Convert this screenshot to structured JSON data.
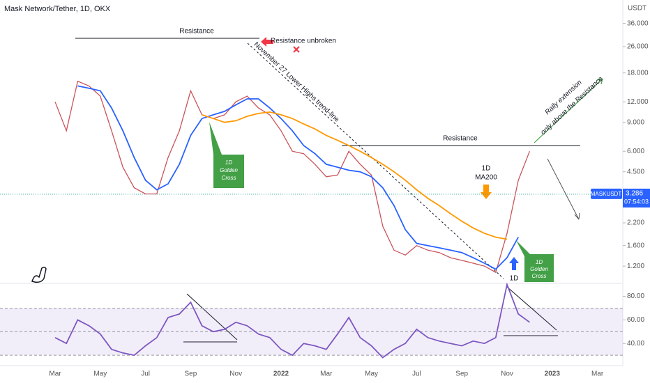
{
  "chart_data": [
    {
      "type": "line",
      "log_scale": true,
      "axis_label": "USDT",
      "categories": [
        "Mar",
        null,
        null,
        null,
        "May",
        null,
        null,
        null,
        "Jul",
        null,
        null,
        null,
        "Sep",
        null,
        null,
        null,
        "Nov",
        null,
        null,
        null,
        "2022",
        null,
        null,
        null,
        "Mar",
        null,
        null,
        null,
        "May",
        null,
        null,
        null,
        "Jul",
        null,
        null,
        null,
        "Sep",
        null,
        null,
        null,
        "Nov",
        null,
        null,
        null,
        "2023",
        null,
        null,
        null,
        "Mar"
      ],
      "series": [
        {
          "color": "#c9545a",
          "values": [
            12,
            8,
            16,
            15,
            13,
            8,
            4.8,
            3.6,
            3.3,
            3.3,
            5.5,
            8,
            14,
            10,
            9.5,
            10,
            12,
            13,
            11,
            10,
            8,
            6,
            5.8,
            5,
            4.2,
            4.3,
            6,
            5,
            4.3,
            2.1,
            1.5,
            1.4,
            1.6,
            1.5,
            1.45,
            1.35,
            1.3,
            1.25,
            1.2,
            1.1,
            1.9,
            4.0,
            6.0,
            null,
            null,
            null,
            null,
            null,
            null
          ]
        },
        {
          "color": "#2962ff",
          "values": [
            null,
            null,
            15,
            14.5,
            14,
            11,
            8,
            5.5,
            4,
            3.5,
            3.8,
            5,
            7.5,
            9.5,
            10,
            10.5,
            11.5,
            12.5,
            12.5,
            11,
            9.5,
            8,
            6.5,
            5.8,
            5,
            4.8,
            4.6,
            4.5,
            4.2,
            3.6,
            2.8,
            2.0,
            1.65,
            1.6,
            1.55,
            1.5,
            1.45,
            1.35,
            1.25,
            1.15,
            1.35,
            1.8,
            null,
            null,
            null,
            null,
            null,
            null,
            null
          ]
        },
        {
          "color": "#ff9800",
          "values": [
            null,
            null,
            null,
            null,
            null,
            null,
            null,
            null,
            null,
            null,
            null,
            null,
            null,
            10,
            9.5,
            9,
            9.2,
            9.8,
            10.2,
            10.4,
            10,
            9.5,
            8.8,
            8.2,
            7.5,
            7,
            6.5,
            6,
            5.5,
            5,
            4.5,
            4,
            3.5,
            3.1,
            2.8,
            2.5,
            2.25,
            2.05,
            1.9,
            1.8,
            1.75,
            null,
            null,
            null,
            null,
            null,
            null,
            null,
            null
          ]
        }
      ],
      "ylim": [
        0.96,
        50
      ],
      "yticks": [
        {
          "value": 1.2,
          "label": "1.200"
        },
        {
          "value": 1.6,
          "label": "1.600"
        },
        {
          "value": 2.2,
          "label": "2.200"
        },
        {
          "value": 4.5,
          "label": "4.500"
        },
        {
          "value": 6,
          "label": "6.000"
        },
        {
          "value": 9,
          "label": "9.000"
        },
        {
          "value": 12,
          "label": "12.000"
        },
        {
          "value": 18,
          "label": "18.000"
        },
        {
          "value": 26,
          "label": "26.000"
        },
        {
          "value": 36,
          "label": "36.000"
        }
      ],
      "last_value": 3.286,
      "symbol": "MASKUSDT",
      "countdown": "07:54:03",
      "annotations": {
        "title": "Mask Network/Tether, 1D, OKX",
        "resistance_top": "Resistance",
        "resistance_unbroken": "Resistance unbroken",
        "trend_line": "November 27 Lower Highs trend-line",
        "resistance_mid": "Resistance",
        "golden_cross_1": [
          "1D",
          "Golden",
          "Cross"
        ],
        "ma200": [
          "1D",
          "MA200"
        ],
        "golden_cross_2": [
          "1D",
          "Golden",
          "Cross"
        ],
        "blue_1d": "1D",
        "rally": [
          "Rally extension",
          "only above the Resistance"
        ]
      }
    },
    {
      "type": "line",
      "series": [
        {
          "color": "#7e57c2",
          "values": [
            45,
            40,
            60,
            55,
            48,
            35,
            32,
            30,
            38,
            45,
            62,
            65,
            75,
            55,
            50,
            52,
            58,
            55,
            48,
            45,
            35,
            30,
            40,
            38,
            35,
            48,
            62,
            45,
            38,
            28,
            35,
            40,
            52,
            45,
            42,
            40,
            38,
            42,
            40,
            45,
            90,
            65,
            58,
            null,
            null,
            null,
            null,
            null,
            null
          ]
        }
      ],
      "ylim": [
        23,
        88
      ],
      "yticks": [
        {
          "value": 40,
          "label": "40.00"
        },
        {
          "value": 60,
          "label": "60.00"
        },
        {
          "value": 80,
          "label": "80.00"
        }
      ],
      "levels": [
        30,
        50,
        70
      ]
    }
  ]
}
